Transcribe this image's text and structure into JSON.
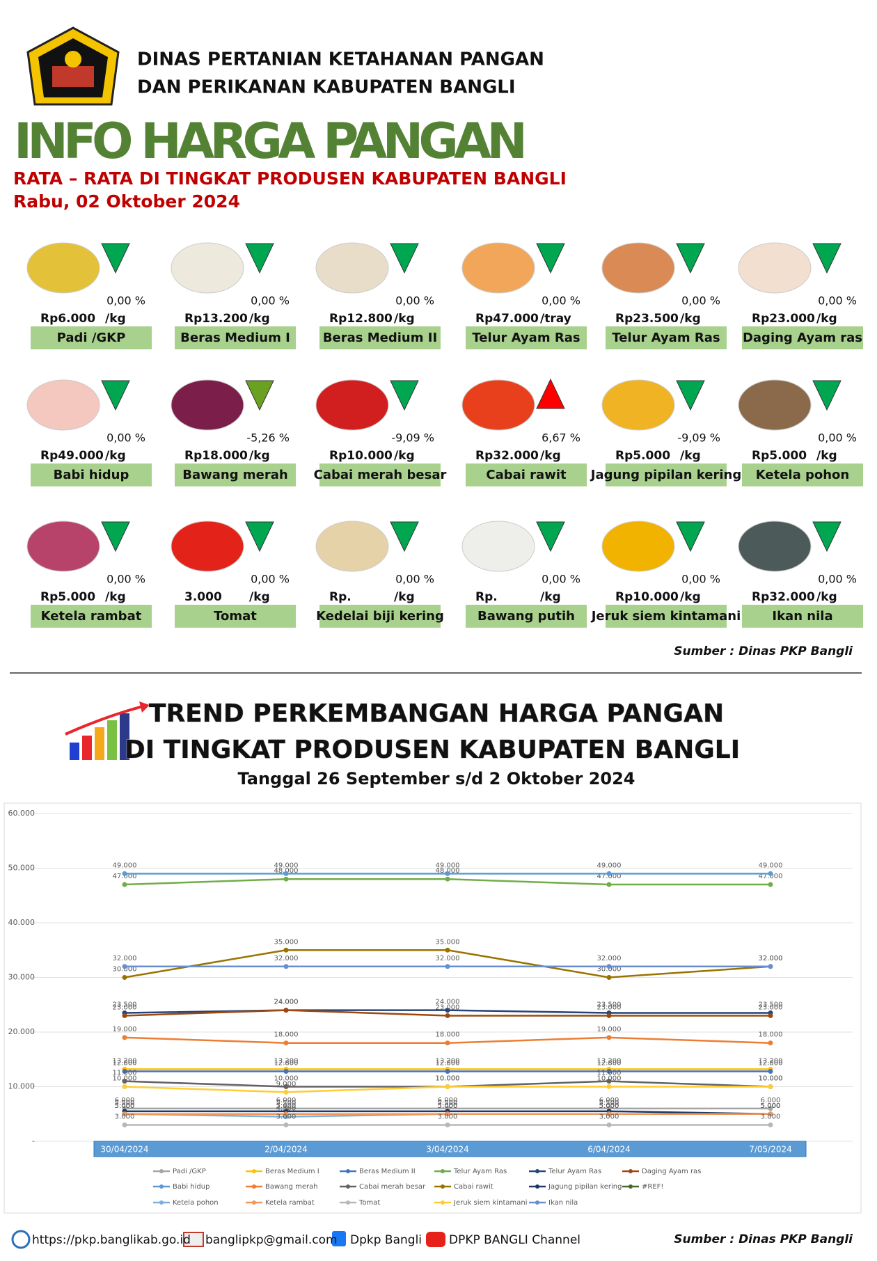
{
  "header": {
    "agency_line1": "DINAS PERTANIAN KETAHANAN PANGAN",
    "agency_line2": "DAN PERIKANAN KABUPATEN BANGLI",
    "title": "INFO HARGA PANGAN",
    "subtitle": "RATA – RATA DI TINGKAT PRODUSEN KABUPATEN BANGLI",
    "date": "Rabu, 02 Oktober 2024"
  },
  "items": [
    {
      "name": "Padi /GKP",
      "price": "Rp6.000",
      "unit": "/kg",
      "change": "0,00 %",
      "trend": "down",
      "arrow_color": "#00a650"
    },
    {
      "name": "Beras Medium I",
      "price": "Rp13.200",
      "unit": "/kg",
      "change": "0,00 %",
      "trend": "down",
      "arrow_color": "#00a650"
    },
    {
      "name": "Beras Medium II",
      "price": "Rp12.800",
      "unit": "/kg",
      "change": "0,00 %",
      "trend": "down",
      "arrow_color": "#00a650"
    },
    {
      "name": "Telur Ayam Ras",
      "price": "Rp47.000",
      "unit": "/tray",
      "change": "0,00 %",
      "trend": "down",
      "arrow_color": "#00a650"
    },
    {
      "name": "Telur Ayam Ras",
      "price": "Rp23.500",
      "unit": "/kg",
      "change": "0,00 %",
      "trend": "down",
      "arrow_color": "#00a650"
    },
    {
      "name": "Daging Ayam ras",
      "price": "Rp23.000",
      "unit": "/kg",
      "change": "0,00 %",
      "trend": "down",
      "arrow_color": "#00a650"
    },
    {
      "name": "Babi hidup",
      "price": "Rp49.000",
      "unit": "/kg",
      "change": "0,00 %",
      "trend": "down",
      "arrow_color": "#00a650"
    },
    {
      "name": "Bawang merah",
      "price": "Rp18.000",
      "unit": "/kg",
      "change": "-5,26 %",
      "trend": "down",
      "arrow_color": "#6aa121"
    },
    {
      "name": "Cabai merah besar",
      "price": "Rp10.000",
      "unit": "/kg",
      "change": "-9,09 %",
      "trend": "down",
      "arrow_color": "#00a650"
    },
    {
      "name": "Cabai rawit",
      "price": "Rp32.000",
      "unit": "/kg",
      "change": "6,67 %",
      "trend": "up",
      "arrow_color": "#ff0000"
    },
    {
      "name": "Jagung pipilan kering",
      "price": "Rp5.000",
      "unit": "/kg",
      "change": "-9,09 %",
      "trend": "down",
      "arrow_color": "#00a650"
    },
    {
      "name": "Ketela pohon",
      "price": "Rp5.000",
      "unit": "/kg",
      "change": "0,00 %",
      "trend": "down",
      "arrow_color": "#00a650"
    },
    {
      "name": "Ketela rambat",
      "price": "Rp5.000",
      "unit": "/kg",
      "change": "0,00 %",
      "trend": "down",
      "arrow_color": "#00a650"
    },
    {
      "name": "Tomat",
      "price": "3.000",
      "unit": "/kg",
      "change": "0,00 %",
      "trend": "down",
      "arrow_color": "#00a650"
    },
    {
      "name": "Kedelai biji kering",
      "price": "Rp.",
      "unit": "/kg",
      "change": "0,00 %",
      "trend": "down",
      "arrow_color": "#00a650"
    },
    {
      "name": "Bawang putih",
      "price": "Rp.",
      "unit": "/kg",
      "change": "0,00 %",
      "trend": "down",
      "arrow_color": "#00a650"
    },
    {
      "name": "Jeruk siem kintamani",
      "price": "Rp10.000",
      "unit": "/kg",
      "change": "0,00 %",
      "trend": "down",
      "arrow_color": "#00a650"
    },
    {
      "name": "Ikan nila",
      "price": "Rp32.000",
      "unit": "/kg",
      "change": "0,00 %",
      "trend": "down",
      "arrow_color": "#00a650"
    }
  ],
  "source_top": "Sumber : Dinas PKP Bangli",
  "trend_header": {
    "line1": "TREND PERKEMBANGAN HARGA PANGAN",
    "line2": "DI TINGKAT PRODUSEN KABUPATEN BANGLI",
    "period": "Tanggal 26 September s/d 2 Oktober 2024"
  },
  "chart_data": {
    "type": "line",
    "categories": [
      "30/04/2024",
      "2/04/2024",
      "3/04/2024",
      "6/04/2024",
      "7/05/2024"
    ],
    "ylim": [
      0,
      60000
    ],
    "yticks": [
      {
        "value": 0,
        "label": "-"
      },
      {
        "value": 10000,
        "label": "10.000"
      },
      {
        "value": 20000,
        "label": "20.000"
      },
      {
        "value": 30000,
        "label": "30.000"
      },
      {
        "value": 40000,
        "label": "40.000"
      },
      {
        "value": 50000,
        "label": "50.000"
      },
      {
        "value": 60000,
        "label": "60.000"
      }
    ],
    "grid": true,
    "legend": "bottom",
    "series": [
      {
        "name": "Padi /GKP",
        "color": "#a5a5a5",
        "values": [
          6000,
          6000,
          6000,
          6000,
          6000
        ],
        "value_labels": [
          "6.000",
          "6.000",
          "6.000",
          "6.000",
          "6.000"
        ]
      },
      {
        "name": "Beras Medium I",
        "color": "#ffc000",
        "values": [
          13200,
          13200,
          13200,
          13200,
          13200
        ],
        "value_labels": [
          "13.200",
          "13.200",
          "13.200",
          "13.200",
          "13.200"
        ]
      },
      {
        "name": "Beras Medium II",
        "color": "#4472c4",
        "values": [
          12800,
          12800,
          12800,
          12800,
          12800
        ],
        "value_labels": [
          "12.800",
          "12.800",
          "12.800",
          "12.800",
          "12.800"
        ]
      },
      {
        "name": "Telur Ayam Ras",
        "color": "#70ad47",
        "values": [
          47000,
          48000,
          48000,
          47000,
          47000
        ],
        "value_labels": [
          "47.000",
          "48.000",
          "48.000",
          "47.000",
          "47.000"
        ]
      },
      {
        "name": "Telur Ayam Ras",
        "color": "#264478",
        "values": [
          23500,
          24000,
          24000,
          23500,
          23500
        ],
        "value_labels": [
          "23.500",
          "24.000",
          "24.000",
          "23.500",
          "23.500"
        ]
      },
      {
        "name": "Daging Ayam ras",
        "color": "#9e480e",
        "values": [
          23000,
          24000,
          23000,
          23000,
          23000
        ],
        "value_labels": [
          "23.000",
          "24.000",
          "23.000",
          "23.000",
          "23.000"
        ]
      },
      {
        "name": "Babi hidup",
        "color": "#5b9bd5",
        "values": [
          49000,
          49000,
          49000,
          49000,
          49000
        ],
        "value_labels": [
          "49.000",
          "49.000",
          "49.000",
          "49.000",
          "49.000"
        ]
      },
      {
        "name": "Bawang merah",
        "color": "#ed7d31",
        "values": [
          19000,
          18000,
          18000,
          19000,
          18000
        ],
        "value_labels": [
          "19.000",
          "18.000",
          "18.000",
          "19.000",
          "18.000"
        ]
      },
      {
        "name": "Cabai merah besar",
        "color": "#636363",
        "values": [
          11000,
          10000,
          10000,
          11000,
          10000
        ],
        "value_labels": [
          "11.000",
          "10.000",
          "10.000",
          "11.000",
          "10.000"
        ]
      },
      {
        "name": "Cabai rawit",
        "color": "#997300",
        "values": [
          30000,
          35000,
          35000,
          30000,
          32000
        ],
        "value_labels": [
          "30.000",
          "35.000",
          "35.000",
          "30.000",
          "32.000"
        ]
      },
      {
        "name": "Jagung pipilan kering",
        "color": "#1f3864",
        "values": [
          5500,
          5500,
          5500,
          5500,
          5000
        ],
        "value_labels": [
          "5.500",
          "5.500",
          "5.500",
          "5.500",
          "5.000"
        ]
      },
      {
        "name": "#REF!",
        "color": "#43682b",
        "values": [
          null,
          null,
          null,
          null,
          null
        ]
      },
      {
        "name": "Ketela pohon",
        "color": "#7cafdd",
        "values": [
          5000,
          4500,
          5000,
          5000,
          5000
        ],
        "value_labels": [
          "5.000",
          "4.500",
          "5.000",
          "5.000",
          "5.000"
        ]
      },
      {
        "name": "Ketela rambat",
        "color": "#f1975a",
        "values": [
          5000,
          5000,
          5000,
          5000,
          5000
        ],
        "value_labels": [
          "5.000",
          "5.000",
          "5.000",
          "5.000",
          "5.000"
        ]
      },
      {
        "name": "Tomat",
        "color": "#b7b7b7",
        "values": [
          3000,
          3000,
          3000,
          3000,
          3000
        ],
        "value_labels": [
          "3.000",
          "3.000",
          "3.000",
          "3.000",
          "3.000"
        ]
      },
      {
        "name": "Jeruk siem kintamani",
        "color": "#ffcd33",
        "values": [
          10000,
          9000,
          10000,
          10000,
          10000
        ],
        "value_labels": [
          "10.000",
          "9.000",
          "10.000",
          "10.000",
          "10.000"
        ]
      },
      {
        "name": "Ikan nila",
        "color": "#698ed0",
        "values": [
          32000,
          32000,
          32000,
          32000,
          32000
        ],
        "value_labels": [
          "32.000",
          "32.000",
          "32.000",
          "32.000",
          "32.000"
        ]
      }
    ]
  },
  "footer": {
    "website": "https://pkp.banglikab.go.id",
    "email": "banglipkp@gmail.com",
    "facebook": "Dpkp Bangli",
    "youtube": "DPKP BANGLI Channel",
    "source": "Sumber : Dinas PKP Bangli"
  }
}
